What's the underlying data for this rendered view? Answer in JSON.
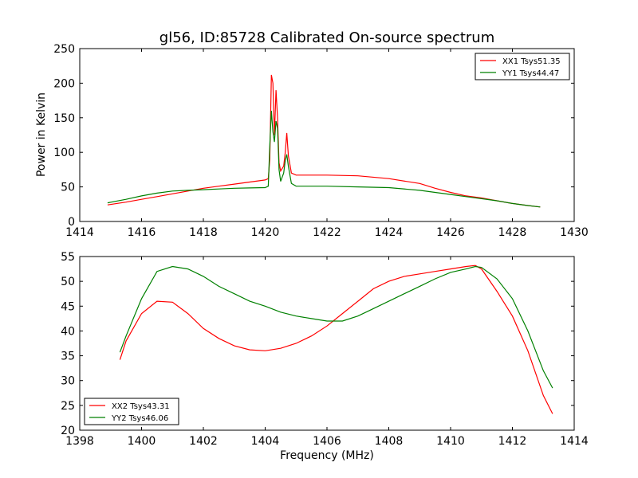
{
  "chart_data": [
    {
      "type": "line",
      "title": "gl56, ID:85728 Calibrated On-source spectrum",
      "xlabel": "",
      "ylabel": "Power in Kelvin",
      "xlim": [
        1414,
        1430
      ],
      "ylim": [
        0,
        250
      ],
      "xticks": [
        "1414",
        "1416",
        "1418",
        "1420",
        "1422",
        "1424",
        "1426",
        "1428",
        "1430"
      ],
      "yticks": [
        "0",
        "50",
        "100",
        "150",
        "200",
        "250"
      ],
      "legend_position": "top-right",
      "series": [
        {
          "name": "XX1 Tsys51.35",
          "color": "#ff0000",
          "points": [
            [
              1414.9,
              24
            ],
            [
              1415.5,
              28
            ],
            [
              1416,
              32
            ],
            [
              1416.5,
              36
            ],
            [
              1417,
              40
            ],
            [
              1417.5,
              44
            ],
            [
              1418,
              48
            ],
            [
              1418.5,
              51
            ],
            [
              1419,
              54
            ],
            [
              1419.5,
              57
            ],
            [
              1420,
              60
            ],
            [
              1420.1,
              62
            ],
            [
              1420.15,
              90
            ],
            [
              1420.2,
              212
            ],
            [
              1420.25,
              200
            ],
            [
              1420.3,
              125
            ],
            [
              1420.35,
              190
            ],
            [
              1420.4,
              150
            ],
            [
              1420.45,
              85
            ],
            [
              1420.5,
              73
            ],
            [
              1420.6,
              80
            ],
            [
              1420.65,
              100
            ],
            [
              1420.7,
              128
            ],
            [
              1420.75,
              95
            ],
            [
              1420.85,
              70
            ],
            [
              1421,
              67
            ],
            [
              1422,
              67
            ],
            [
              1423,
              66
            ],
            [
              1424,
              62
            ],
            [
              1425,
              55
            ],
            [
              1425.5,
              48
            ],
            [
              1426,
              42
            ],
            [
              1426.5,
              37
            ],
            [
              1427,
              34
            ],
            [
              1427.5,
              30
            ],
            [
              1428,
              26
            ],
            [
              1428.5,
              23
            ],
            [
              1428.9,
              21
            ]
          ]
        },
        {
          "name": "YY1 Tsys44.47",
          "color": "#008000",
          "points": [
            [
              1414.9,
              27
            ],
            [
              1415.5,
              32
            ],
            [
              1416,
              37
            ],
            [
              1416.5,
              41
            ],
            [
              1417,
              44
            ],
            [
              1417.5,
              45
            ],
            [
              1418,
              46
            ],
            [
              1418.5,
              47
            ],
            [
              1419,
              48
            ],
            [
              1419.5,
              48.5
            ],
            [
              1420,
              49
            ],
            [
              1420.1,
              51
            ],
            [
              1420.15,
              110
            ],
            [
              1420.2,
              160
            ],
            [
              1420.25,
              130
            ],
            [
              1420.3,
              115
            ],
            [
              1420.35,
              145
            ],
            [
              1420.4,
              135
            ],
            [
              1420.45,
              75
            ],
            [
              1420.5,
              58
            ],
            [
              1420.6,
              70
            ],
            [
              1420.65,
              88
            ],
            [
              1420.7,
              97
            ],
            [
              1420.75,
              80
            ],
            [
              1420.85,
              55
            ],
            [
              1421,
              51
            ],
            [
              1422,
              51
            ],
            [
              1423,
              50
            ],
            [
              1424,
              49
            ],
            [
              1425,
              45
            ],
            [
              1425.5,
              42
            ],
            [
              1426,
              39
            ],
            [
              1426.5,
              36
            ],
            [
              1427,
              33
            ],
            [
              1427.5,
              30
            ],
            [
              1428,
              26
            ],
            [
              1428.5,
              23
            ],
            [
              1428.9,
              21
            ]
          ]
        }
      ]
    },
    {
      "type": "line",
      "title": "",
      "xlabel": "Frequency (MHz)",
      "ylabel": "",
      "xlim": [
        1398,
        1414
      ],
      "ylim": [
        20,
        55
      ],
      "xticks": [
        "1398",
        "1400",
        "1402",
        "1404",
        "1406",
        "1408",
        "1410",
        "1412",
        "1414"
      ],
      "yticks": [
        "20",
        "25",
        "30",
        "35",
        "40",
        "45",
        "50",
        "55"
      ],
      "legend_position": "bottom-left",
      "series": [
        {
          "name": "XX2 Tsys43.31",
          "color": "#ff0000",
          "points": [
            [
              1399.3,
              34.2
            ],
            [
              1399.5,
              38
            ],
            [
              1400,
              43.5
            ],
            [
              1400.5,
              46
            ],
            [
              1401,
              45.8
            ],
            [
              1401.5,
              43.5
            ],
            [
              1402,
              40.5
            ],
            [
              1402.5,
              38.5
            ],
            [
              1403,
              37
            ],
            [
              1403.5,
              36.2
            ],
            [
              1404,
              36
            ],
            [
              1404.5,
              36.5
            ],
            [
              1405,
              37.5
            ],
            [
              1405.5,
              39
            ],
            [
              1406,
              41
            ],
            [
              1406.5,
              43.5
            ],
            [
              1407,
              46
            ],
            [
              1407.5,
              48.5
            ],
            [
              1408,
              50
            ],
            [
              1408.5,
              51
            ],
            [
              1409,
              51.5
            ],
            [
              1409.5,
              52
            ],
            [
              1410,
              52.5
            ],
            [
              1410.5,
              53
            ],
            [
              1410.8,
              53.2
            ],
            [
              1411,
              52.5
            ],
            [
              1411.5,
              48
            ],
            [
              1412,
              43
            ],
            [
              1412.5,
              36
            ],
            [
              1413,
              27
            ],
            [
              1413.3,
              23.3
            ]
          ]
        },
        {
          "name": "YY2 Tsys46.06",
          "color": "#008000",
          "points": [
            [
              1399.3,
              35.7
            ],
            [
              1399.5,
              39
            ],
            [
              1400,
              46.5
            ],
            [
              1400.5,
              52
            ],
            [
              1401,
              53
            ],
            [
              1401.5,
              52.5
            ],
            [
              1402,
              51
            ],
            [
              1402.5,
              49
            ],
            [
              1403,
              47.5
            ],
            [
              1403.5,
              46
            ],
            [
              1404,
              45
            ],
            [
              1404.5,
              43.8
            ],
            [
              1405,
              43
            ],
            [
              1405.5,
              42.5
            ],
            [
              1406,
              42
            ],
            [
              1406.5,
              42
            ],
            [
              1407,
              43
            ],
            [
              1407.5,
              44.5
            ],
            [
              1408,
              46
            ],
            [
              1408.5,
              47.5
            ],
            [
              1409,
              49
            ],
            [
              1409.5,
              50.5
            ],
            [
              1410,
              51.8
            ],
            [
              1410.5,
              52.5
            ],
            [
              1410.8,
              53
            ],
            [
              1411,
              52.8
            ],
            [
              1411.5,
              50.5
            ],
            [
              1412,
              46.5
            ],
            [
              1412.5,
              40
            ],
            [
              1413,
              32
            ],
            [
              1413.3,
              28.5
            ]
          ]
        }
      ]
    }
  ]
}
